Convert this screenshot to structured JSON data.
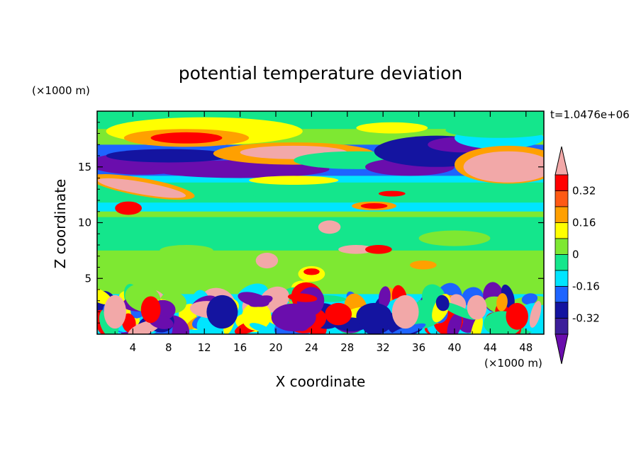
{
  "chart_data": {
    "type": "heatmap",
    "title": "potential temperature deviation",
    "xlabel": "X coordinate",
    "ylabel": "Z coordinate",
    "x_unit": "(×1000 m)",
    "y_unit": "(×1000 m)",
    "time_label": "t=1.0476e+06",
    "xlim": [
      0,
      50
    ],
    "ylim": [
      0,
      20
    ],
    "x_ticks": [
      4,
      8,
      12,
      16,
      20,
      24,
      28,
      32,
      36,
      40,
      44,
      48
    ],
    "y_ticks": [
      5,
      10,
      15
    ],
    "colorbar": {
      "levels": [
        -0.4,
        -0.32,
        -0.24,
        -0.16,
        -0.08,
        0,
        0.08,
        0.16,
        0.24,
        0.32,
        0.4
      ],
      "colors": [
        "#6a0dad",
        "#3c1e9a",
        "#1414a0",
        "#1e64ff",
        "#00e5ff",
        "#14e68c",
        "#7ee832",
        "#ffff00",
        "#ffa000",
        "#ff5a14",
        "#ff0000",
        "#f2a8a8"
      ],
      "tick_labels": [
        "0.32",
        "0.16",
        "0",
        "-0.16",
        "-0.32"
      ],
      "tick_values": [
        0.32,
        0.16,
        0,
        -0.16,
        -0.32
      ],
      "extend": "both"
    }
  }
}
